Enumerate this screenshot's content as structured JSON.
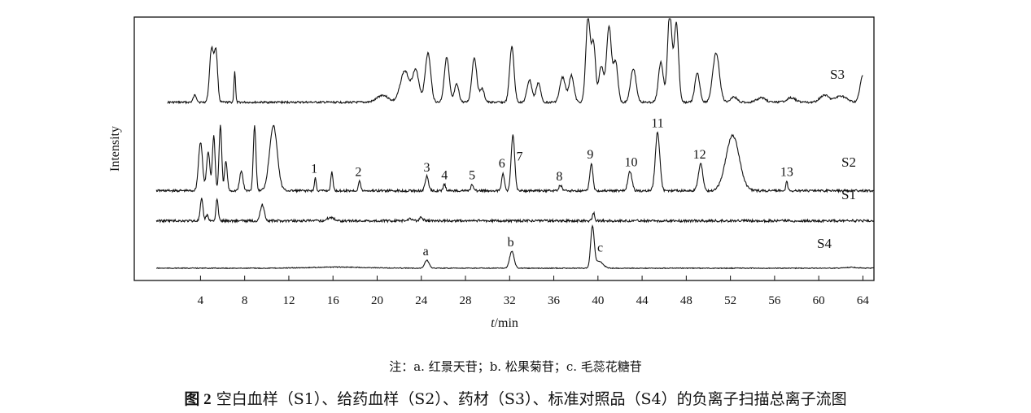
{
  "chart_data": {
    "type": "line",
    "xlabel": "t/min",
    "ylabel": "Intensity",
    "xlim": [
      -2,
      65
    ],
    "xticks": [
      4,
      8,
      12,
      16,
      20,
      24,
      28,
      32,
      36,
      40,
      44,
      48,
      52,
      56,
      60,
      64
    ],
    "grid": false,
    "legend": "none",
    "series": [
      {
        "name": "S3",
        "x_range": [
          1,
          64
        ],
        "baseline": 0.12,
        "peaks": [
          [
            3.5,
            0.08,
            0.15
          ],
          [
            5.0,
            0.6,
            0.18
          ],
          [
            5.4,
            0.55,
            0.15
          ],
          [
            7.1,
            0.35,
            0.07
          ],
          [
            20.5,
            0.08,
            0.5
          ],
          [
            22.5,
            0.35,
            0.4
          ],
          [
            23.5,
            0.35,
            0.3
          ],
          [
            24.6,
            0.55,
            0.25
          ],
          [
            26.3,
            0.5,
            0.22
          ],
          [
            27.2,
            0.2,
            0.2
          ],
          [
            28.8,
            0.5,
            0.22
          ],
          [
            29.5,
            0.15,
            0.2
          ],
          [
            32.2,
            0.62,
            0.2
          ],
          [
            33.8,
            0.25,
            0.22
          ],
          [
            34.6,
            0.22,
            0.2
          ],
          [
            36.8,
            0.28,
            0.25
          ],
          [
            37.6,
            0.3,
            0.22
          ],
          [
            39.1,
            0.95,
            0.2
          ],
          [
            39.6,
            0.65,
            0.18
          ],
          [
            40.3,
            0.4,
            0.22
          ],
          [
            41.0,
            0.85,
            0.22
          ],
          [
            41.6,
            0.45,
            0.2
          ],
          [
            43.2,
            0.38,
            0.25
          ],
          [
            45.7,
            0.45,
            0.22
          ],
          [
            46.5,
            1.0,
            0.2
          ],
          [
            47.1,
            0.88,
            0.2
          ],
          [
            49.0,
            0.32,
            0.22
          ],
          [
            50.7,
            0.55,
            0.3
          ],
          [
            52.3,
            0.06,
            0.3
          ],
          [
            54.8,
            0.05,
            0.4
          ],
          [
            57.5,
            0.05,
            0.4
          ],
          [
            60.5,
            0.08,
            0.4
          ],
          [
            62.0,
            0.07,
            0.5
          ],
          [
            64.0,
            0.3,
            0.25
          ]
        ],
        "label": "S3"
      },
      {
        "name": "S2",
        "x_range": [
          0,
          65
        ],
        "baseline": 0.08,
        "peaks": [
          [
            4.0,
            0.75,
            0.18
          ],
          [
            4.7,
            0.6,
            0.15
          ],
          [
            5.2,
            0.85,
            0.12
          ],
          [
            5.8,
            1.0,
            0.12
          ],
          [
            6.3,
            0.45,
            0.12
          ],
          [
            7.7,
            0.3,
            0.15
          ],
          [
            8.9,
            1.0,
            0.12
          ],
          [
            10.6,
            1.0,
            0.35
          ],
          [
            14.4,
            0.2,
            0.08
          ],
          [
            15.9,
            0.28,
            0.1
          ],
          [
            18.4,
            0.15,
            0.1
          ],
          [
            24.5,
            0.22,
            0.15
          ],
          [
            26.1,
            0.1,
            0.1
          ],
          [
            28.6,
            0.1,
            0.1
          ],
          [
            31.4,
            0.28,
            0.12
          ],
          [
            32.3,
            0.85,
            0.16
          ],
          [
            36.6,
            0.08,
            0.15
          ],
          [
            39.4,
            0.42,
            0.14
          ],
          [
            42.9,
            0.3,
            0.18
          ],
          [
            45.4,
            0.9,
            0.2
          ],
          [
            49.3,
            0.42,
            0.2
          ],
          [
            52.2,
            0.85,
            0.6
          ],
          [
            57.1,
            0.15,
            0.08
          ]
        ],
        "label": "S2"
      },
      {
        "name": "S1",
        "x_range": [
          0,
          65
        ],
        "baseline": 0.05,
        "peaks": [
          [
            4.1,
            0.95,
            0.12
          ],
          [
            4.6,
            0.25,
            0.12
          ],
          [
            5.5,
            0.95,
            0.1
          ],
          [
            9.6,
            0.7,
            0.18
          ],
          [
            15.8,
            0.15,
            0.3
          ],
          [
            23.0,
            0.1,
            0.2
          ],
          [
            24.0,
            0.15,
            0.15
          ],
          [
            39.6,
            0.35,
            0.1
          ]
        ],
        "label": "S1"
      },
      {
        "name": "S4",
        "x_range": [
          0,
          65
        ],
        "baseline": 0.04,
        "peaks": [
          [
            16.5,
            0.05,
            2.5
          ],
          [
            24.5,
            0.35,
            0.2
          ],
          [
            32.2,
            0.75,
            0.2
          ],
          [
            39.5,
            1.8,
            0.16
          ],
          [
            40.1,
            0.3,
            0.35
          ],
          [
            63.0,
            0.04,
            0.5
          ]
        ],
        "label": "S4"
      }
    ],
    "peak_labels": [
      {
        "text": "1",
        "x": 14.3,
        "series": "S2"
      },
      {
        "text": "2",
        "x": 18.3,
        "series": "S2"
      },
      {
        "text": "3",
        "x": 24.5,
        "series": "S2"
      },
      {
        "text": "4",
        "x": 26.1,
        "series": "S2"
      },
      {
        "text": "5",
        "x": 28.6,
        "series": "S2"
      },
      {
        "text": "6",
        "x": 31.3,
        "series": "S2"
      },
      {
        "text": "7",
        "x": 32.9,
        "series": "S2"
      },
      {
        "text": "8",
        "x": 36.5,
        "series": "S2"
      },
      {
        "text": "9",
        "x": 39.3,
        "series": "S2"
      },
      {
        "text": "10",
        "x": 43.0,
        "series": "S2"
      },
      {
        "text": "11",
        "x": 45.4,
        "series": "S2"
      },
      {
        "text": "12",
        "x": 49.2,
        "series": "S2"
      },
      {
        "text": "13",
        "x": 57.1,
        "series": "S2"
      },
      {
        "text": "a",
        "x": 24.4,
        "series": "S4"
      },
      {
        "text": "b",
        "x": 32.1,
        "series": "S4"
      },
      {
        "text": "c",
        "x": 40.2,
        "series": "S4"
      }
    ]
  },
  "note": "注：a. 红景天苷；b. 松果菊苷；c. 毛蕊花糖苷",
  "caption": {
    "number": "图 2",
    "text": "空白血样（S1）、给药血样（S2）、药材（S3）、标准对照品（S4）的负离子扫描总离子流图"
  }
}
